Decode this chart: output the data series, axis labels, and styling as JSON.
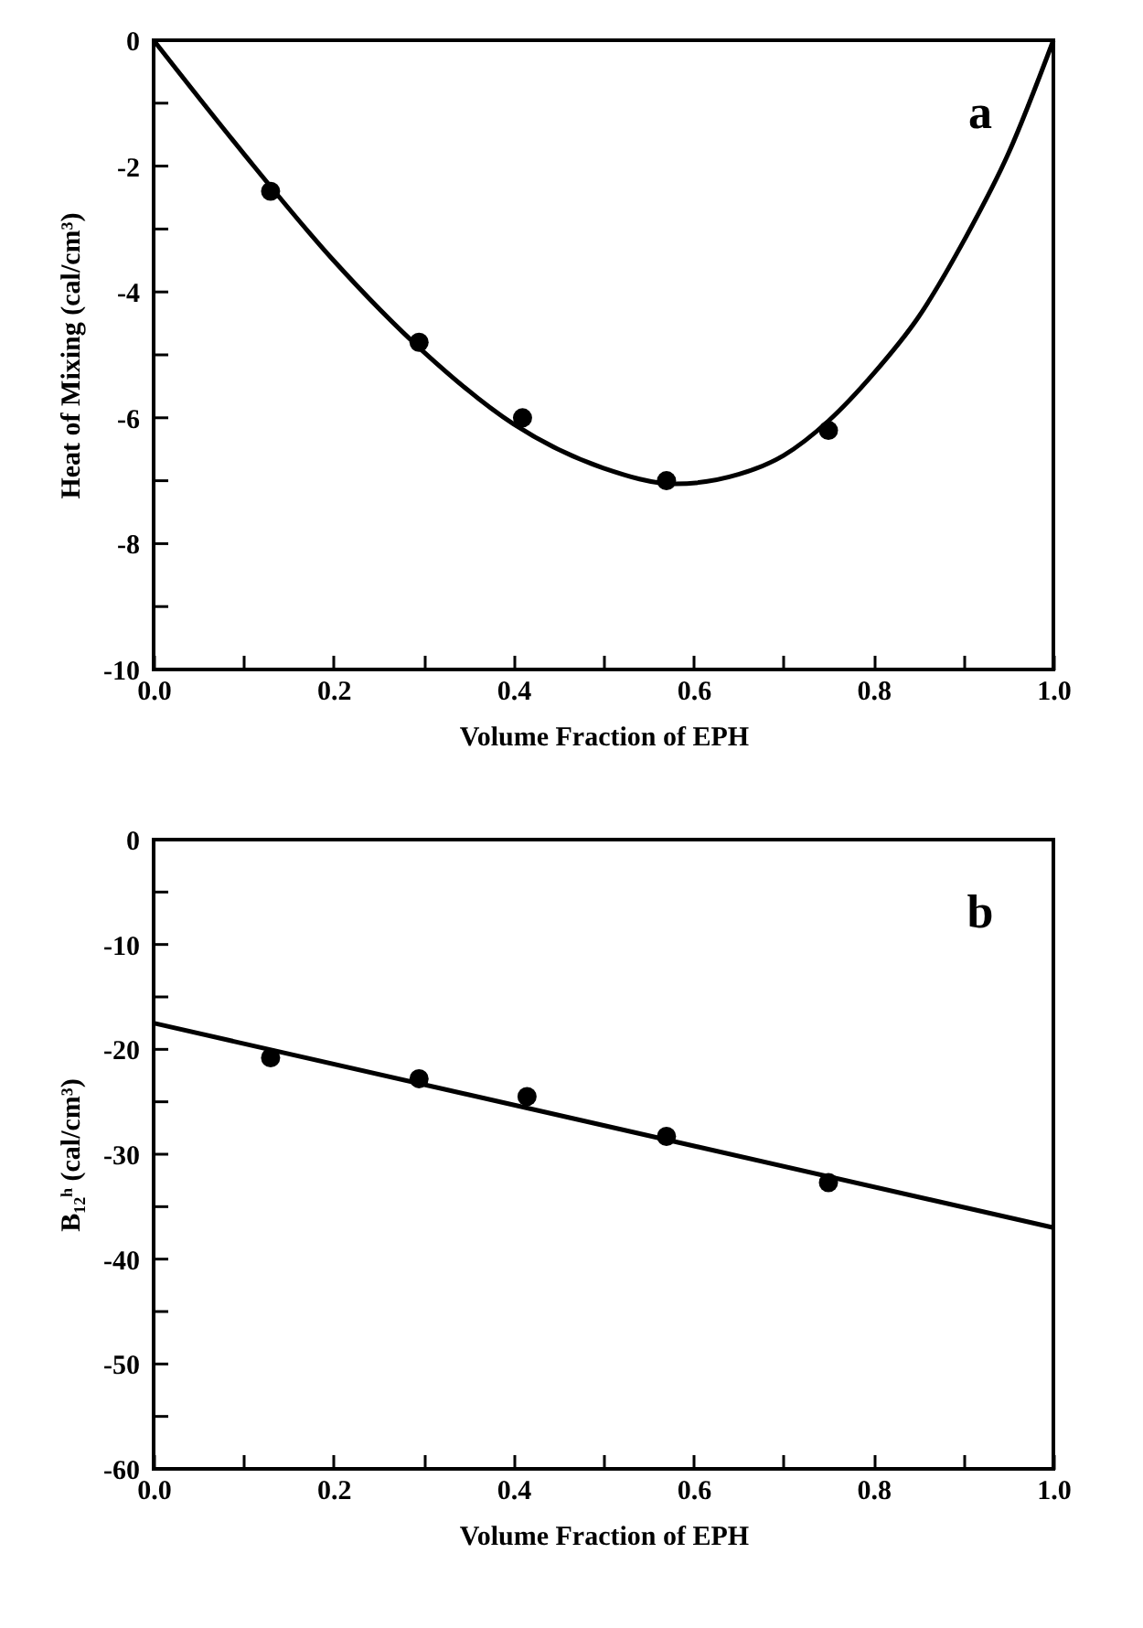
{
  "chart_data": [
    {
      "type": "scatter",
      "xlabel": "Volume Fraction of EPH",
      "ylabel": "Heat of Mixing (cal/cm³)",
      "annotations": [
        "a"
      ],
      "xlim": [
        0,
        1
      ],
      "ylim": [
        -10,
        0
      ],
      "xticks": [
        {
          "value": 0,
          "label": "0.0"
        },
        {
          "value": 0.1,
          "label": null
        },
        0.2,
        {
          "value": 0.3,
          "label": null
        },
        0.4,
        {
          "value": 0.5,
          "label": null
        },
        0.6,
        {
          "value": 0.7,
          "label": null
        },
        0.8,
        {
          "value": 0.9,
          "label": null
        },
        {
          "value": 1,
          "label": "1.0"
        }
      ],
      "yticks": [
        0,
        {
          "value": -1,
          "label": null
        },
        -2,
        {
          "value": -3,
          "label": null
        },
        -4,
        {
          "value": -5,
          "label": null
        },
        -6,
        {
          "value": -7,
          "label": null
        },
        -8,
        {
          "value": -9,
          "label": null
        },
        -10
      ],
      "series": [
        {
          "marker": "circle",
          "color": "#000000",
          "x": [
            0.13,
            0.295,
            0.41,
            0.57,
            0.75
          ],
          "values": [
            -2.4,
            -4.8,
            -6.0,
            -7.0,
            -6.2
          ]
        },
        {
          "type": "line",
          "color": "#000000",
          "x": [
            0,
            0.1,
            0.2,
            0.3,
            0.4,
            0.5,
            0.58,
            0.65,
            0.7,
            0.75,
            0.8,
            0.85,
            0.9,
            0.95,
            1.0
          ],
          "values": [
            0,
            -1.8,
            -3.5,
            -4.95,
            -6.1,
            -6.8,
            -7.05,
            -6.9,
            -6.6,
            -6.05,
            -5.3,
            -4.4,
            -3.2,
            -1.8,
            0
          ]
        }
      ]
    },
    {
      "type": "scatter",
      "xlabel": "Volume Fraction of EPH",
      "ylabel": "B₁₂ʰ (cal/cm³)",
      "annotations": [
        "b"
      ],
      "xlim": [
        0,
        1
      ],
      "ylim": [
        -60,
        0
      ],
      "xticks": [
        {
          "value": 0,
          "label": "0.0"
        },
        {
          "value": 0.1,
          "label": null
        },
        0.2,
        {
          "value": 0.3,
          "label": null
        },
        0.4,
        {
          "value": 0.5,
          "label": null
        },
        0.6,
        {
          "value": 0.7,
          "label": null
        },
        0.8,
        {
          "value": 0.9,
          "label": null
        },
        {
          "value": 1,
          "label": "1.0"
        }
      ],
      "yticks": [
        0,
        {
          "value": -5,
          "label": null
        },
        -10,
        {
          "value": -15,
          "label": null
        },
        -20,
        {
          "value": -25,
          "label": null
        },
        -30,
        {
          "value": -35,
          "label": null
        },
        -40,
        {
          "value": -45,
          "label": null
        },
        -50,
        {
          "value": -55,
          "label": null
        },
        -60
      ],
      "series": [
        {
          "marker": "circle",
          "color": "#000000",
          "x": [
            0.13,
            0.295,
            0.415,
            0.57,
            0.75
          ],
          "values": [
            -20.8,
            -22.8,
            -24.5,
            -28.3,
            -32.7
          ]
        },
        {
          "type": "line",
          "color": "#000000",
          "x": [
            0,
            1
          ],
          "values": [
            -17.5,
            -37
          ]
        }
      ]
    }
  ]
}
